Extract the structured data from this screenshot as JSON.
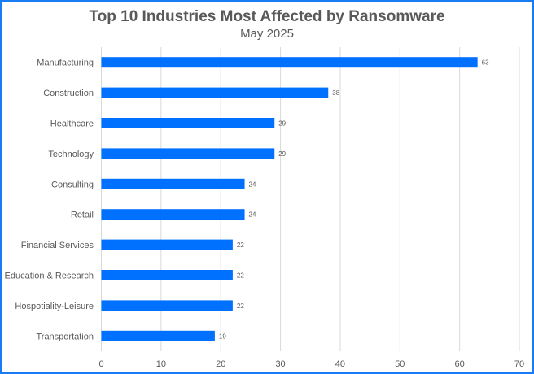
{
  "chart_data": {
    "type": "bar",
    "orientation": "horizontal",
    "title": "Top 10 Industries Most Affected by Ransomware",
    "subtitle": "May 2025",
    "categories": [
      "Manufacturing",
      "Construction",
      "Healthcare",
      "Technology",
      "Consulting",
      "Retail",
      "Financial Services",
      "Education & Research",
      "Hospotiality-Leisure",
      "Transportation"
    ],
    "values": [
      63,
      38,
      29,
      29,
      24,
      24,
      22,
      22,
      22,
      19
    ],
    "xlim": [
      0,
      70
    ],
    "xticks": [
      0,
      10,
      20,
      30,
      40,
      50,
      60,
      70
    ],
    "grid": true,
    "data_labels": true,
    "colors": {
      "bar": "#0070ff",
      "border": "#1a7cf5",
      "grid": "#d9d9d9",
      "text": "#595959"
    }
  }
}
